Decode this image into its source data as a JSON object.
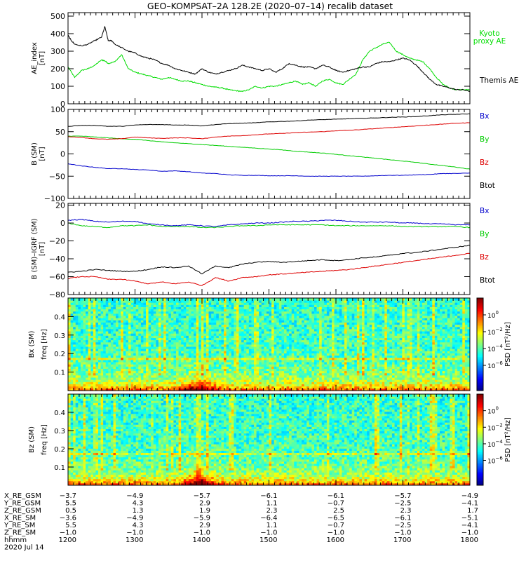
{
  "title": "GEO–KOMPSAT–2A 128.2E (2020–07–14) recalib dataset",
  "time_axis": {
    "start": 1200,
    "end": 1800,
    "major_ticks": [
      1200,
      1300,
      1400,
      1500,
      1600,
      1700,
      1800
    ],
    "minor_per_major": 12
  },
  "chart_data": [
    {
      "type": "line",
      "ylabel": "AE_index [nT]",
      "ylim": [
        0,
        520
      ],
      "yticks": [
        0,
        100,
        200,
        300,
        400,
        500
      ],
      "series": [
        {
          "name": "Kyoto proxy AE",
          "label_lines": [
            "Kyoto",
            "proxy AE"
          ],
          "color": "#00dd00",
          "x": [
            1200,
            1210,
            1220,
            1230,
            1240,
            1250,
            1255,
            1260,
            1270,
            1280,
            1290,
            1300,
            1310,
            1320,
            1330,
            1340,
            1350,
            1360,
            1370,
            1380,
            1390,
            1400,
            1410,
            1420,
            1430,
            1440,
            1450,
            1460,
            1470,
            1480,
            1490,
            1500,
            1510,
            1520,
            1530,
            1540,
            1550,
            1560,
            1570,
            1580,
            1590,
            1600,
            1610,
            1620,
            1630,
            1640,
            1650,
            1660,
            1670,
            1680,
            1690,
            1700,
            1710,
            1720,
            1730,
            1740,
            1750,
            1760,
            1770,
            1780,
            1790,
            1800
          ],
          "y": [
            210,
            150,
            190,
            200,
            220,
            250,
            245,
            230,
            240,
            280,
            200,
            180,
            170,
            160,
            150,
            140,
            150,
            140,
            130,
            130,
            120,
            110,
            100,
            95,
            90,
            80,
            75,
            70,
            80,
            100,
            90,
            100,
            100,
            110,
            120,
            130,
            110,
            120,
            100,
            130,
            140,
            120,
            110,
            140,
            170,
            250,
            300,
            320,
            340,
            350,
            300,
            280,
            260,
            250,
            240,
            200,
            150,
            110,
            90,
            80,
            80,
            80
          ]
        },
        {
          "name": "Themis AE",
          "label_lines": [
            "Themis AE"
          ],
          "color": "#000000",
          "x": [
            1200,
            1205,
            1210,
            1220,
            1230,
            1240,
            1250,
            1255,
            1260,
            1265,
            1270,
            1280,
            1290,
            1300,
            1310,
            1320,
            1330,
            1340,
            1350,
            1360,
            1370,
            1380,
            1390,
            1400,
            1410,
            1420,
            1430,
            1440,
            1450,
            1460,
            1470,
            1480,
            1490,
            1500,
            1510,
            1520,
            1530,
            1540,
            1550,
            1560,
            1570,
            1580,
            1590,
            1600,
            1610,
            1620,
            1630,
            1640,
            1650,
            1660,
            1670,
            1680,
            1690,
            1700,
            1710,
            1720,
            1730,
            1740,
            1750,
            1760,
            1770,
            1780,
            1790,
            1800
          ],
          "y": [
            390,
            360,
            340,
            330,
            340,
            360,
            380,
            440,
            360,
            360,
            340,
            320,
            300,
            290,
            270,
            260,
            250,
            230,
            220,
            200,
            190,
            180,
            170,
            200,
            180,
            170,
            180,
            190,
            200,
            220,
            210,
            200,
            190,
            200,
            180,
            200,
            230,
            220,
            210,
            210,
            200,
            220,
            210,
            190,
            180,
            190,
            200,
            210,
            210,
            230,
            240,
            240,
            250,
            260,
            250,
            220,
            180,
            140,
            110,
            100,
            90,
            80,
            80,
            70
          ]
        }
      ]
    },
    {
      "type": "line",
      "ylabel": "B (SM) [nT]",
      "ylim": [
        -100,
        100
      ],
      "yticks": [
        -100,
        -50,
        0,
        50,
        100
      ],
      "series": [
        {
          "name": "Bx",
          "color": "#0000cc",
          "x": [
            1200,
            1220,
            1240,
            1260,
            1280,
            1300,
            1320,
            1340,
            1360,
            1380,
            1400,
            1420,
            1440,
            1460,
            1480,
            1500,
            1520,
            1540,
            1560,
            1580,
            1600,
            1620,
            1640,
            1660,
            1680,
            1700,
            1720,
            1740,
            1760,
            1780,
            1800
          ],
          "y": [
            -22,
            -27,
            -30,
            -33,
            -33,
            -35,
            -36,
            -39,
            -38,
            -40,
            -43,
            -44,
            -47,
            -48,
            -48,
            -49,
            -49,
            -49,
            -50,
            -50,
            -50,
            -50,
            -50,
            -49,
            -48,
            -48,
            -47,
            -46,
            -44,
            -44,
            -43
          ]
        },
        {
          "name": "By",
          "color": "#00cc00",
          "x": [
            1200,
            1220,
            1240,
            1260,
            1280,
            1300,
            1320,
            1340,
            1360,
            1380,
            1400,
            1420,
            1440,
            1460,
            1480,
            1500,
            1520,
            1540,
            1560,
            1580,
            1600,
            1620,
            1640,
            1660,
            1680,
            1700,
            1720,
            1740,
            1760,
            1780,
            1800
          ],
          "y": [
            40,
            40,
            38,
            36,
            34,
            33,
            30,
            27,
            25,
            23,
            21,
            19,
            17,
            15,
            13,
            11,
            9,
            6,
            4,
            2,
            -1,
            -4,
            -7,
            -10,
            -13,
            -16,
            -19,
            -23,
            -26,
            -30,
            -34
          ]
        },
        {
          "name": "Bz",
          "color": "#dd0000",
          "x": [
            1200,
            1220,
            1240,
            1260,
            1280,
            1300,
            1320,
            1340,
            1360,
            1380,
            1400,
            1420,
            1440,
            1460,
            1480,
            1500,
            1520,
            1540,
            1560,
            1580,
            1600,
            1620,
            1640,
            1660,
            1680,
            1700,
            1720,
            1740,
            1760,
            1780,
            1800
          ],
          "y": [
            39,
            37,
            34,
            33,
            34,
            38,
            36,
            35,
            36,
            36,
            34,
            38,
            40,
            41,
            43,
            45,
            46,
            48,
            49,
            50,
            52,
            53,
            55,
            57,
            59,
            61,
            63,
            65,
            67,
            69,
            70
          ]
        },
        {
          "name": "Btot",
          "color": "#000000",
          "x": [
            1200,
            1220,
            1240,
            1260,
            1280,
            1300,
            1320,
            1340,
            1360,
            1380,
            1400,
            1420,
            1440,
            1460,
            1480,
            1500,
            1520,
            1540,
            1560,
            1580,
            1600,
            1620,
            1640,
            1660,
            1680,
            1700,
            1720,
            1740,
            1760,
            1780,
            1800
          ],
          "y": [
            62,
            64,
            64,
            62,
            62,
            65,
            66,
            66,
            65,
            65,
            63,
            66,
            68,
            69,
            70,
            72,
            73,
            74,
            76,
            77,
            78,
            79,
            80,
            81,
            82,
            83,
            84,
            86,
            88,
            89,
            90
          ]
        }
      ]
    },
    {
      "type": "line",
      "ylabel": "B (SM)–IGRF (SM) [nT]",
      "ylim": [
        -80,
        22
      ],
      "yticks": [
        -80,
        -60,
        -40,
        -20,
        0,
        20
      ],
      "series": [
        {
          "name": "Bx",
          "color": "#0000cc",
          "x": [
            1200,
            1220,
            1240,
            1260,
            1280,
            1300,
            1320,
            1340,
            1360,
            1380,
            1400,
            1420,
            1440,
            1460,
            1480,
            1500,
            1520,
            1540,
            1560,
            1580,
            1600,
            1620,
            1640,
            1660,
            1680,
            1700,
            1720,
            1740,
            1760,
            1780,
            1800
          ],
          "y": [
            3,
            4,
            2,
            1,
            2,
            2,
            -1,
            -2,
            -3,
            -2,
            -3,
            -4,
            -2,
            -1,
            0,
            0,
            1,
            2,
            2,
            3,
            3,
            2,
            1,
            1,
            1,
            0,
            0,
            -1,
            -1,
            -2,
            -2
          ]
        },
        {
          "name": "By",
          "color": "#00cc00",
          "x": [
            1200,
            1220,
            1240,
            1260,
            1280,
            1300,
            1320,
            1340,
            1360,
            1380,
            1400,
            1420,
            1440,
            1460,
            1480,
            1500,
            1520,
            1540,
            1560,
            1580,
            1600,
            1620,
            1640,
            1660,
            1680,
            1700,
            1720,
            1740,
            1760,
            1780,
            1800
          ],
          "y": [
            0,
            -3,
            -4,
            -5,
            -3,
            -3,
            -2,
            -4,
            -4,
            -4,
            -5,
            -5,
            -4,
            -3,
            -3,
            -2,
            -2,
            -2,
            -2,
            -2,
            -3,
            -3,
            -3,
            -3,
            -3,
            -4,
            -4,
            -4,
            -4,
            -4,
            -5
          ]
        },
        {
          "name": "Bz",
          "color": "#dd0000",
          "x": [
            1200,
            1220,
            1240,
            1260,
            1280,
            1300,
            1320,
            1340,
            1360,
            1380,
            1400,
            1420,
            1440,
            1460,
            1480,
            1500,
            1520,
            1540,
            1560,
            1580,
            1600,
            1620,
            1640,
            1660,
            1680,
            1700,
            1720,
            1740,
            1760,
            1780,
            1800
          ],
          "y": [
            -62,
            -60,
            -60,
            -63,
            -63,
            -65,
            -68,
            -66,
            -68,
            -66,
            -70,
            -61,
            -65,
            -61,
            -60,
            -58,
            -57,
            -56,
            -55,
            -54,
            -53,
            -52,
            -50,
            -48,
            -46,
            -44,
            -42,
            -40,
            -38,
            -36,
            -34
          ]
        },
        {
          "name": "Btot",
          "color": "#000000",
          "x": [
            1200,
            1220,
            1240,
            1260,
            1280,
            1300,
            1320,
            1340,
            1360,
            1380,
            1400,
            1420,
            1440,
            1460,
            1480,
            1500,
            1520,
            1540,
            1560,
            1580,
            1600,
            1620,
            1640,
            1660,
            1680,
            1700,
            1720,
            1740,
            1760,
            1780,
            1800
          ],
          "y": [
            -55,
            -54,
            -52,
            -53,
            -54,
            -54,
            -52,
            -49,
            -50,
            -48,
            -57,
            -48,
            -50,
            -46,
            -44,
            -43,
            -44,
            -43,
            -42,
            -41,
            -42,
            -41,
            -39,
            -38,
            -36,
            -34,
            -33,
            -31,
            -29,
            -27,
            -25
          ]
        }
      ]
    },
    {
      "type": "heatmap",
      "ylabel": "Bx (SM) freq [Hz]",
      "ylim": [
        0,
        0.5
      ],
      "yticks": [
        0.1,
        0.2,
        0.3,
        0.4
      ],
      "colorbar": {
        "label": "PSD [nT²/Hz]",
        "log10_range": [
          -9,
          2
        ],
        "tick_exponents": [
          0,
          -2,
          -4,
          -6
        ]
      }
    },
    {
      "type": "heatmap",
      "ylabel": "Bz (SM) freq [Hz]",
      "ylim": [
        0,
        0.5
      ],
      "yticks": [
        0.1,
        0.2,
        0.3,
        0.4
      ],
      "colorbar": {
        "label": "PSD [nT²/Hz]",
        "log10_range": [
          -9,
          2
        ],
        "tick_exponents": [
          0,
          -2,
          -4,
          -6
        ]
      }
    }
  ],
  "ephemeris": {
    "rows": [
      {
        "label": "X_RE_GSM",
        "values": [
          "−3.7",
          "−4.9",
          "−5.7",
          "−6.1",
          "−6.1",
          "−5.7",
          "−4.9"
        ]
      },
      {
        "label": "Y_RE_GSM",
        "values": [
          "5.5",
          "4.3",
          "2.9",
          "1.1",
          "−0.7",
          "−2.5",
          "−4.1"
        ]
      },
      {
        "label": "Z_RE_GSM",
        "values": [
          "0.5",
          "1.3",
          "1.9",
          "2.3",
          "2.5",
          "2.3",
          "1.7"
        ]
      },
      {
        "label": "X_RE_SM",
        "values": [
          "−3.6",
          "−4.9",
          "−5.9",
          "−6.4",
          "−6.5",
          "−6.1",
          "−5.1"
        ]
      },
      {
        "label": "Y_RE_SM",
        "values": [
          "5.5",
          "4.3",
          "2.9",
          "1.1",
          "−0.7",
          "−2.5",
          "−4.1"
        ]
      },
      {
        "label": "Z_RE_SM",
        "values": [
          "−1.0",
          "−1.0",
          "−1.0",
          "−1.0",
          "−1.0",
          "−1.0",
          "−1.0"
        ]
      },
      {
        "label": "hhmm",
        "values": [
          "1200",
          "1300",
          "1400",
          "1500",
          "1600",
          "1700",
          "1800"
        ]
      }
    ],
    "date": "2020 Jul 14"
  }
}
